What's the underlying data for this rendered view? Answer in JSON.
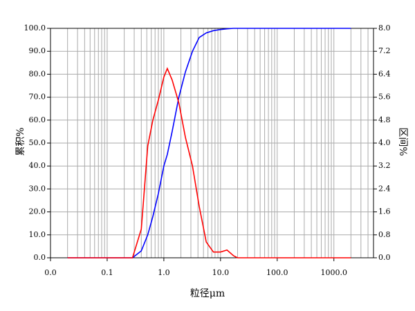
{
  "chart_data": {
    "type": "line",
    "x_label": "粒径μm",
    "y_label": "累积%",
    "y2_label": "区间%",
    "x_scale": "log",
    "x": [
      0.02,
      0.28,
      0.4,
      0.52,
      0.64,
      0.8,
      1.0,
      1.15,
      1.4,
      1.84,
      2.4,
      3.2,
      4.2,
      5.6,
      7.5,
      10,
      13,
      17,
      20,
      2000
    ],
    "series": [
      {
        "name": "累积",
        "color": "#0000ff",
        "values": [
          0,
          0,
          3,
          10,
          18,
          28,
          40,
          45,
          55,
          70,
          81,
          90,
          96,
          98,
          99,
          99.5,
          99.8,
          100,
          100,
          100
        ]
      },
      {
        "name": "区间",
        "color": "#ff0000",
        "axis": "y2",
        "values": [
          0,
          0,
          1.0,
          3.9,
          4.8,
          5.5,
          6.3,
          6.6,
          6.2,
          5.4,
          4.2,
          3.2,
          1.8,
          0.55,
          0.2,
          0.2,
          0.27,
          0.07,
          0,
          0
        ]
      }
    ],
    "xlim": [
      0.01,
      5000
    ],
    "xticks": [
      {
        "value": 0.01,
        "label": "0.0"
      },
      0.1,
      {
        "value": 1,
        "label": "1.0"
      },
      {
        "value": 10,
        "label": "10.0"
      },
      {
        "value": 100,
        "label": "100.0"
      },
      {
        "value": 1000,
        "label": "1000.0"
      }
    ],
    "xgrid": [
      0.02,
      0.03,
      0.04,
      0.05,
      0.06,
      0.07,
      0.08,
      0.09,
      0.2,
      0.3,
      0.4,
      0.5,
      0.6,
      0.7,
      0.8,
      0.9,
      2,
      3,
      4,
      5,
      6,
      7,
      8,
      9,
      20,
      30,
      40,
      50,
      60,
      70,
      80,
      90,
      200,
      300,
      400,
      500,
      600,
      700,
      800,
      900,
      2000,
      3000,
      4000
    ],
    "ylim": [
      0,
      100
    ],
    "yticks": [
      {
        "value": 0,
        "label": "0.0"
      },
      {
        "value": 10,
        "label": "10.0"
      },
      {
        "value": 20,
        "label": "20.0"
      },
      {
        "value": 30,
        "label": "30.0"
      },
      {
        "value": 40,
        "label": "40.0"
      },
      {
        "value": 50,
        "label": "50.0"
      },
      {
        "value": 60,
        "label": "60.0"
      },
      {
        "value": 70,
        "label": "70.0"
      },
      {
        "value": 80,
        "label": "80.0"
      },
      {
        "value": 90,
        "label": "90.0"
      },
      {
        "value": 100,
        "label": "100.0"
      }
    ],
    "y2lim": [
      0,
      8
    ],
    "y2ticks": [
      {
        "value": 0,
        "label": "0.0"
      },
      0.8,
      1.6,
      2.4,
      3.2,
      {
        "value": 4,
        "label": "4.0"
      },
      4.8,
      5.6,
      6.4,
      7.2,
      {
        "value": 8,
        "label": "8.0"
      }
    ],
    "grid": true
  }
}
